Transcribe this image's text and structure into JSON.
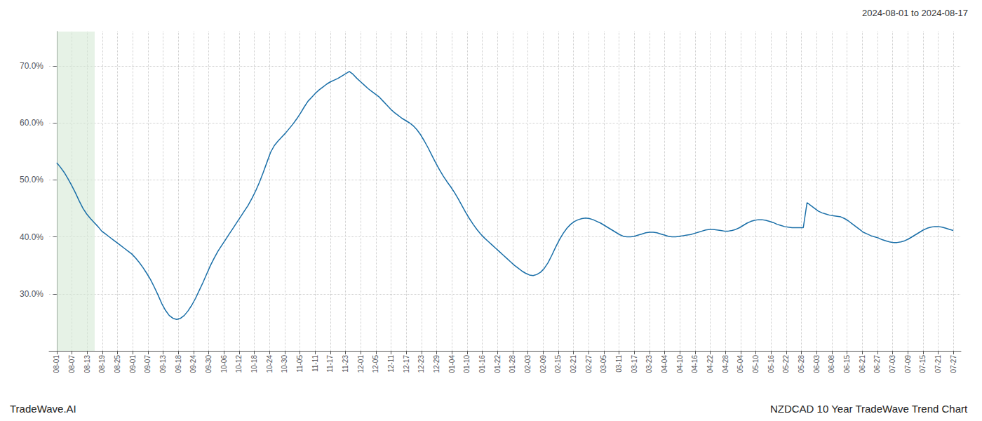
{
  "chart_data": {
    "type": "line",
    "annotations": [
      "2024-08-01 to 2024-08-17",
      "TradeWave.AI",
      "NZDCAD 10 Year TradeWave Trend Chart"
    ],
    "color": "#1a6fa8",
    "grid": true,
    "highlight": {
      "x": [
        0,
        2.5
      ],
      "color": "#d6ead6"
    },
    "xlim": [
      -0.5,
      59.5
    ],
    "xticks": [
      {
        "value": 0,
        "label": "08-01"
      },
      {
        "value": 1,
        "label": "08-07"
      },
      {
        "value": 2,
        "label": "08-13"
      },
      {
        "value": 3,
        "label": "08-19"
      },
      {
        "value": 4,
        "label": "08-25"
      },
      {
        "value": 5,
        "label": "09-01"
      },
      {
        "value": 6,
        "label": "09-07"
      },
      {
        "value": 7,
        "label": "09-13"
      },
      {
        "value": 8,
        "label": "09-18"
      },
      {
        "value": 9,
        "label": "09-24"
      },
      {
        "value": 10,
        "label": "09-30"
      },
      {
        "value": 11,
        "label": "10-06"
      },
      {
        "value": 12,
        "label": "10-12"
      },
      {
        "value": 13,
        "label": "10-18"
      },
      {
        "value": 14,
        "label": "10-24"
      },
      {
        "value": 15,
        "label": "10-30"
      },
      {
        "value": 16,
        "label": "11-05"
      },
      {
        "value": 17,
        "label": "11-11"
      },
      {
        "value": 18,
        "label": "11-17"
      },
      {
        "value": 19,
        "label": "11-23"
      },
      {
        "value": 20,
        "label": "12-01"
      },
      {
        "value": 21,
        "label": "12-05"
      },
      {
        "value": 22,
        "label": "12-11"
      },
      {
        "value": 23,
        "label": "12-17"
      },
      {
        "value": 24,
        "label": "12-23"
      },
      {
        "value": 25,
        "label": "12-29"
      },
      {
        "value": 26,
        "label": "01-04"
      },
      {
        "value": 27,
        "label": "01-10"
      },
      {
        "value": 28,
        "label": "01-16"
      },
      {
        "value": 29,
        "label": "01-22"
      },
      {
        "value": 30,
        "label": "01-28"
      },
      {
        "value": 31,
        "label": "02-03"
      },
      {
        "value": 32,
        "label": "02-09"
      },
      {
        "value": 33,
        "label": "02-15"
      },
      {
        "value": 34,
        "label": "02-21"
      },
      {
        "value": 35,
        "label": "02-27"
      },
      {
        "value": 36,
        "label": "03-05"
      },
      {
        "value": 37,
        "label": "03-11"
      },
      {
        "value": 38,
        "label": "03-17"
      },
      {
        "value": 39,
        "label": "03-23"
      },
      {
        "value": 40,
        "label": "04-04"
      },
      {
        "value": 41,
        "label": "04-10"
      },
      {
        "value": 42,
        "label": "04-16"
      },
      {
        "value": 43,
        "label": "04-22"
      },
      {
        "value": 44,
        "label": "04-28"
      },
      {
        "value": 45,
        "label": "05-04"
      },
      {
        "value": 46,
        "label": "05-10"
      },
      {
        "value": 47,
        "label": "05-16"
      },
      {
        "value": 48,
        "label": "05-22"
      },
      {
        "value": 49,
        "label": "05-28"
      },
      {
        "value": 50,
        "label": "06-03"
      },
      {
        "value": 51,
        "label": "06-08"
      },
      {
        "value": 52,
        "label": "06-15"
      },
      {
        "value": 53,
        "label": "06-21"
      },
      {
        "value": 54,
        "label": "06-27"
      },
      {
        "value": 55,
        "label": "07-03"
      },
      {
        "value": 56,
        "label": "07-09"
      },
      {
        "value": 57,
        "label": "07-15"
      },
      {
        "value": 58,
        "label": "07-21"
      },
      {
        "value": 59,
        "label": "07-27"
      }
    ],
    "ylim": [
      0.2,
      0.76
    ],
    "yticks": [
      {
        "value": 0.3,
        "label": "30.0%"
      },
      {
        "value": 0.4,
        "label": "40.0%"
      },
      {
        "value": 0.5,
        "label": "50.0%"
      },
      {
        "value": 0.6,
        "label": "60.0%"
      },
      {
        "value": 0.7,
        "label": "70.0%"
      }
    ],
    "values": [
      0.53,
      0.522,
      0.513,
      0.502,
      0.49,
      0.477,
      0.463,
      0.45,
      0.44,
      0.432,
      0.425,
      0.418,
      0.41,
      0.405,
      0.4,
      0.395,
      0.39,
      0.385,
      0.38,
      0.375,
      0.37,
      0.363,
      0.355,
      0.346,
      0.336,
      0.325,
      0.312,
      0.298,
      0.283,
      0.271,
      0.262,
      0.257,
      0.255,
      0.257,
      0.262,
      0.27,
      0.28,
      0.292,
      0.306,
      0.32,
      0.335,
      0.35,
      0.363,
      0.375,
      0.385,
      0.395,
      0.405,
      0.415,
      0.425,
      0.435,
      0.445,
      0.455,
      0.467,
      0.48,
      0.495,
      0.512,
      0.53,
      0.548,
      0.56,
      0.568,
      0.575,
      0.582,
      0.59,
      0.598,
      0.607,
      0.617,
      0.628,
      0.638,
      0.645,
      0.652,
      0.658,
      0.663,
      0.668,
      0.672,
      0.675,
      0.678,
      0.682,
      0.686,
      0.69,
      0.685,
      0.678,
      0.672,
      0.666,
      0.66,
      0.655,
      0.65,
      0.645,
      0.638,
      0.631,
      0.624,
      0.618,
      0.613,
      0.608,
      0.604,
      0.6,
      0.595,
      0.588,
      0.579,
      0.568,
      0.556,
      0.543,
      0.53,
      0.518,
      0.507,
      0.497,
      0.488,
      0.478,
      0.467,
      0.455,
      0.443,
      0.432,
      0.422,
      0.413,
      0.405,
      0.398,
      0.392,
      0.386,
      0.38,
      0.374,
      0.368,
      0.362,
      0.356,
      0.35,
      0.345,
      0.34,
      0.336,
      0.333,
      0.332,
      0.334,
      0.338,
      0.345,
      0.355,
      0.368,
      0.382,
      0.395,
      0.406,
      0.415,
      0.422,
      0.427,
      0.43,
      0.432,
      0.433,
      0.432,
      0.43,
      0.427,
      0.424,
      0.42,
      0.416,
      0.412,
      0.408,
      0.404,
      0.401,
      0.4,
      0.4,
      0.401,
      0.403,
      0.405,
      0.407,
      0.408,
      0.408,
      0.407,
      0.405,
      0.403,
      0.401,
      0.4,
      0.4,
      0.401,
      0.402,
      0.403,
      0.404,
      0.406,
      0.408,
      0.41,
      0.412,
      0.413,
      0.413,
      0.412,
      0.411,
      0.41,
      0.41,
      0.411,
      0.413,
      0.416,
      0.42,
      0.424,
      0.427,
      0.429,
      0.43,
      0.43,
      0.429,
      0.427,
      0.425,
      0.422,
      0.42,
      0.418,
      0.417,
      0.416,
      0.416,
      0.416,
      0.416,
      0.46,
      0.455,
      0.45,
      0.445,
      0.442,
      0.44,
      0.438,
      0.437,
      0.436,
      0.435,
      0.432,
      0.428,
      0.423,
      0.418,
      0.413,
      0.408,
      0.405,
      0.402,
      0.4,
      0.398,
      0.395,
      0.393,
      0.391,
      0.39,
      0.39,
      0.391,
      0.393,
      0.396,
      0.4,
      0.404,
      0.408,
      0.412,
      0.415,
      0.417,
      0.418,
      0.418,
      0.417,
      0.415,
      0.413,
      0.411
    ]
  }
}
